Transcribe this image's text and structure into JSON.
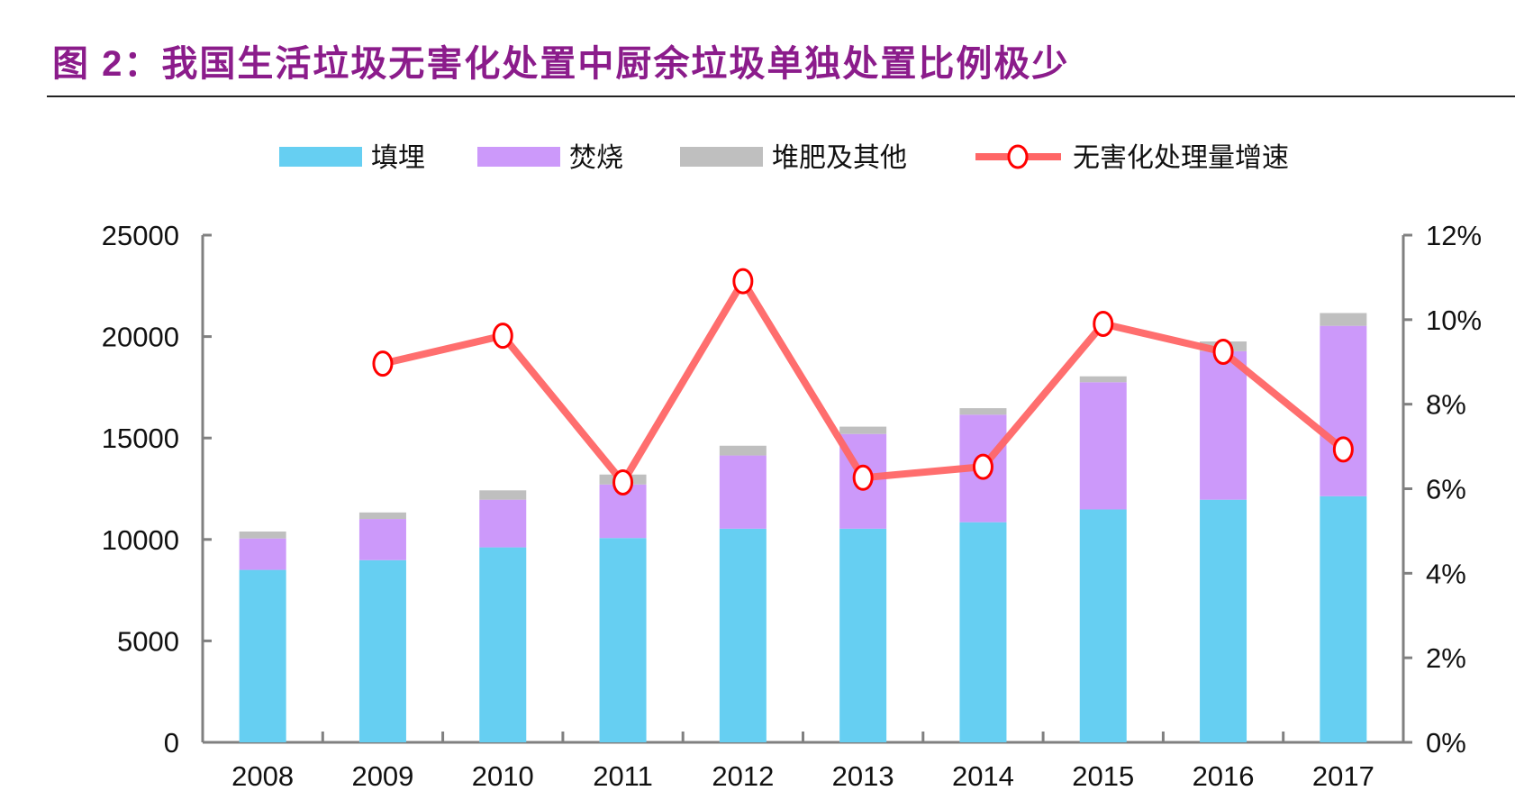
{
  "title": "图 2：我国生活垃圾无害化处置中厨余垃圾单独处置比例极少",
  "chart_data": {
    "type": "bar",
    "stacked": true,
    "title": "图 2：我国生活垃圾无害化处置中厨余垃圾单独处置比例极少",
    "categories": [
      "2008",
      "2009",
      "2010",
      "2011",
      "2012",
      "2013",
      "2014",
      "2015",
      "2016",
      "2017"
    ],
    "series": [
      {
        "name": "填埋",
        "type": "bar",
        "axis": "left",
        "color": "#66CFF2",
        "values": [
          8500,
          8980,
          9610,
          10070,
          10530,
          10530,
          10850,
          11480,
          11960,
          12130
        ]
      },
      {
        "name": "焚烧",
        "type": "bar",
        "axis": "left",
        "color": "#CC99FA",
        "values": [
          1550,
          2030,
          2350,
          2640,
          3610,
          4670,
          5300,
          6270,
          7320,
          8400
        ]
      },
      {
        "name": "堆肥及其他",
        "type": "bar",
        "axis": "left",
        "color": "#BFBFBF",
        "values": [
          340,
          320,
          460,
          490,
          480,
          360,
          320,
          290,
          480,
          630
        ]
      },
      {
        "name": "无害化处理量增速",
        "type": "line",
        "axis": "right",
        "color": "#FF6666",
        "marker_color": "#FF0000",
        "values": [
          null,
          8.96,
          9.62,
          6.15,
          10.91,
          6.26,
          6.52,
          9.9,
          9.24,
          6.93
        ]
      }
    ],
    "yleft": {
      "lim": [
        0,
        25000
      ],
      "ticks": [
        "0",
        "5000",
        "10000",
        "15000",
        "20000",
        "25000"
      ]
    },
    "yright": {
      "lim": [
        0,
        12
      ],
      "unit": "%",
      "ticks": [
        "0%",
        "2%",
        "4%",
        "6%",
        "8%",
        "10%",
        "12%"
      ]
    },
    "legend": "top",
    "grid": false
  }
}
